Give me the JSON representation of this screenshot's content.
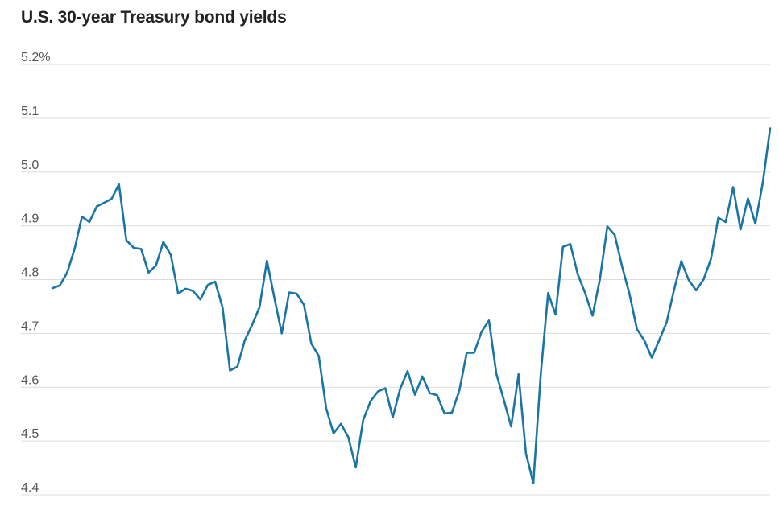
{
  "chart_data": {
    "type": "line",
    "title": "U.S. 30-year Treasury bond yields",
    "xlabel": "",
    "ylabel": "",
    "ylim": [
      4.4,
      5.2
    ],
    "yticks": [
      {
        "value": 5.2,
        "label": "5.2%"
      },
      {
        "value": 5.1,
        "label": "5.1"
      },
      {
        "value": 5.0,
        "label": "5.0"
      },
      {
        "value": 4.9,
        "label": "4.9"
      },
      {
        "value": 4.8,
        "label": "4.8"
      },
      {
        "value": 4.7,
        "label": "4.7"
      },
      {
        "value": 4.6,
        "label": "4.6"
      },
      {
        "value": 4.5,
        "label": "4.5"
      },
      {
        "value": 4.4,
        "label": "4.4"
      }
    ],
    "grid": true,
    "line_color": "#1b75a3",
    "series": [
      {
        "values": [
          4.784,
          4.789,
          4.813,
          4.857,
          4.917,
          4.907,
          4.936,
          4.943,
          4.95,
          4.977,
          4.873,
          4.859,
          4.857,
          4.813,
          4.826,
          4.87,
          4.846,
          4.774,
          4.783,
          4.779,
          4.763,
          4.79,
          4.796,
          4.748,
          4.631,
          4.638,
          4.687,
          4.716,
          4.749,
          4.835,
          4.766,
          4.7,
          4.776,
          4.774,
          4.753,
          4.681,
          4.658,
          4.561,
          4.514,
          4.532,
          4.507,
          4.451,
          4.539,
          4.574,
          4.592,
          4.598,
          4.544,
          4.597,
          4.63,
          4.586,
          4.62,
          4.589,
          4.585,
          4.551,
          4.553,
          4.594,
          4.664,
          4.664,
          4.703,
          4.724,
          4.625,
          4.577,
          4.527,
          4.624,
          4.477,
          4.422,
          4.624,
          4.775,
          4.735,
          4.861,
          4.866,
          4.81,
          4.775,
          4.733,
          4.801,
          4.899,
          4.883,
          4.824,
          4.773,
          4.708,
          4.687,
          4.655,
          4.687,
          4.72,
          4.78,
          4.834,
          4.799,
          4.78,
          4.8,
          4.838,
          4.915,
          4.907,
          4.972,
          4.893,
          4.951,
          4.904,
          4.979,
          5.081
        ]
      }
    ]
  }
}
